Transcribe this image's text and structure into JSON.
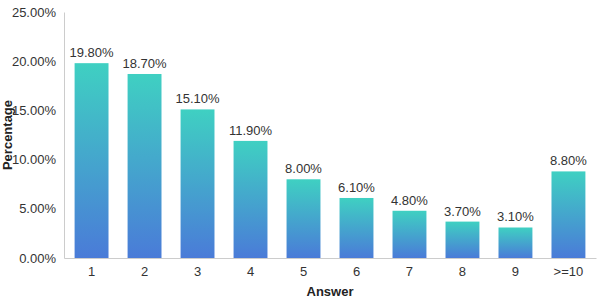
{
  "chart_data": {
    "type": "bar",
    "x_label": "Answer",
    "y_label": "Percentage",
    "categories": [
      "1",
      "2",
      "3",
      "4",
      "5",
      "6",
      "7",
      "8",
      "9",
      ">=10"
    ],
    "values": [
      19.8,
      18.7,
      15.1,
      11.9,
      8.0,
      6.1,
      4.8,
      3.7,
      3.1,
      8.8
    ],
    "value_labels": [
      "19.80%",
      "18.70%",
      "15.10%",
      "11.90%",
      "8.00%",
      "6.10%",
      "4.80%",
      "3.70%",
      "3.10%",
      "8.80%"
    ],
    "data_labels": true,
    "color": "#3fd0c2",
    "grid": false,
    "ylim": [
      0,
      25
    ],
    "yticks": [
      {
        "value": 0,
        "label": "0.00%"
      },
      {
        "value": 5,
        "label": "5.00%"
      },
      {
        "value": 10,
        "label": "10.00%"
      },
      {
        "value": 15,
        "label": "15.00%"
      },
      {
        "value": 20,
        "label": "20.00%"
      },
      {
        "value": 25,
        "label": "25.00%"
      }
    ]
  }
}
